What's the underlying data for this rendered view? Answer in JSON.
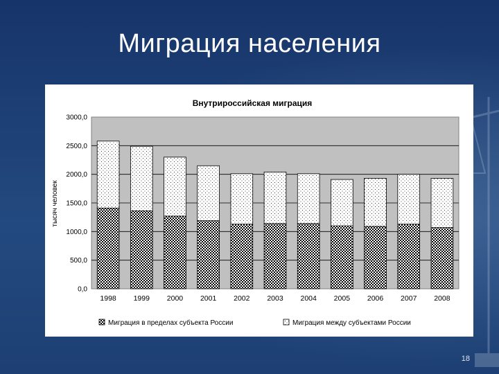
{
  "slide": {
    "title": "Миграция населения",
    "page_number": "18"
  },
  "colors": {
    "background": "#1d3f73",
    "panel": "#ffffff",
    "plot_area": "#c0c0c0",
    "bar_outline": "#000000"
  },
  "chart_data": {
    "type": "bar",
    "stacked": true,
    "title": "Внутрироссийская миграция",
    "xlabel": "",
    "ylabel": "тысяч человек",
    "categories": [
      "1998",
      "1999",
      "2000",
      "2001",
      "2002",
      "2003",
      "2004",
      "2005",
      "2006",
      "2007",
      "2008"
    ],
    "ylim": [
      0,
      3000
    ],
    "yticks": [
      "0,0",
      "500,0",
      "1000,0",
      "1500,0",
      "2000,0",
      "2500,0",
      "3000,0"
    ],
    "series": [
      {
        "name": "Миграция в пределах субъекта России",
        "pattern": "dense-dots",
        "values": [
          1410,
          1360,
          1270,
          1190,
          1130,
          1140,
          1140,
          1100,
          1090,
          1130,
          1070
        ]
      },
      {
        "name": "Миграция между субъектами России",
        "pattern": "sparse-dots",
        "values": [
          1170,
          1130,
          1030,
          960,
          880,
          900,
          870,
          810,
          840,
          870,
          860
        ]
      }
    ],
    "grid": true,
    "legend_position": "bottom"
  }
}
